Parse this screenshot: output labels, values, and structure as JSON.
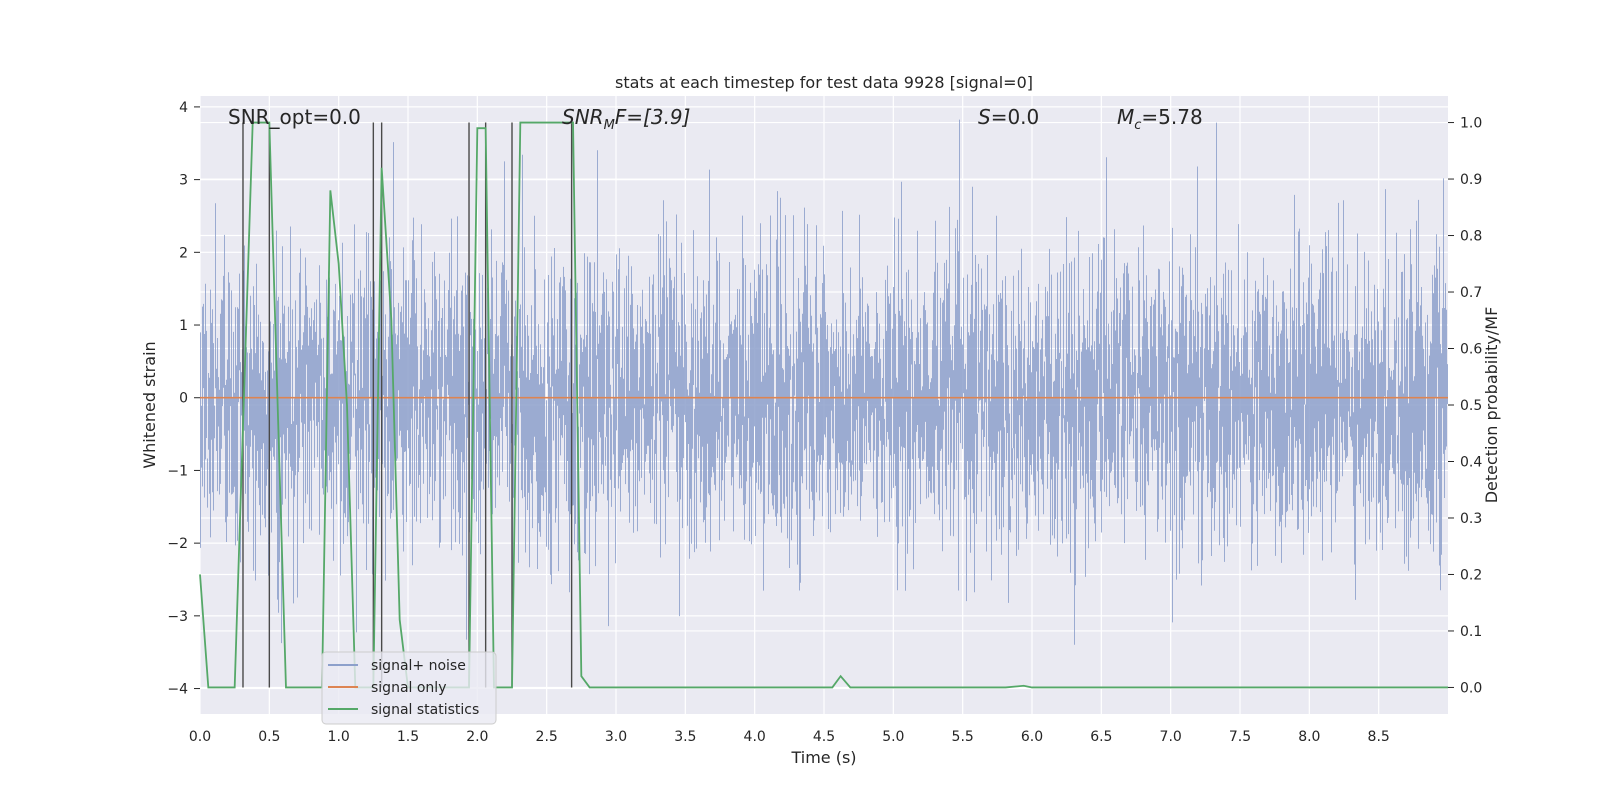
{
  "chart_data": {
    "type": "line",
    "title": "stats at each timestep for test data 9928 [signal=0]",
    "xlabel": "Time (s)",
    "ylabel_left": "Whitened strain",
    "ylabel_right": "Detection probability/MF",
    "xlim": [
      0.0,
      9.0
    ],
    "ylim_left": [
      -4.35,
      4.15
    ],
    "ylim_right": [
      -0.047,
      1.047
    ],
    "xticks": [
      0.0,
      0.5,
      1.0,
      1.5,
      2.0,
      2.5,
      3.0,
      3.5,
      4.0,
      4.5,
      5.0,
      5.5,
      6.0,
      6.5,
      7.0,
      7.5,
      8.0,
      8.5
    ],
    "xtick_labels": [
      "0.0",
      "0.5",
      "1.0",
      "1.5",
      "2.0",
      "2.5",
      "3.0",
      "3.5",
      "4.0",
      "4.5",
      "5.0",
      "5.5",
      "6.0",
      "6.5",
      "7.0",
      "7.5",
      "8.0",
      "8.5"
    ],
    "yticks_left": [
      -4,
      -3,
      -2,
      -1,
      0,
      1,
      2,
      3,
      4
    ],
    "ytick_labels_left": [
      "−4",
      "−3",
      "−2",
      "−1",
      "0",
      "1",
      "2",
      "3",
      "4"
    ],
    "yticks_right": [
      0.0,
      0.1,
      0.2,
      0.3,
      0.4,
      0.5,
      0.6,
      0.7,
      0.8,
      0.9,
      1.0
    ],
    "ytick_labels_right": [
      "0.0",
      "0.1",
      "0.2",
      "0.3",
      "0.4",
      "0.5",
      "0.6",
      "0.7",
      "0.8",
      "0.9",
      "1.0"
    ],
    "annotations": {
      "snr_opt": "SNR_opt=0.0",
      "snr_mf_base": "SNR",
      "snr_mf_sub": "M",
      "snr_mf_tail": "F=[3.9]",
      "s_var": "S",
      "s_val": "=0.0",
      "mc_base": "M",
      "mc_sub": "c",
      "mc_val": "=5.78"
    },
    "legend": {
      "position": "lower-left",
      "entries": [
        "signal+ noise",
        "signal only",
        "signal statistics"
      ]
    },
    "series": [
      {
        "name": "signal+ noise",
        "axis": "left",
        "description": "whitened noise, roughly N(0,1), 9 s sampled",
        "duration": 9.0,
        "std": 1.0,
        "color": "#8da0cb"
      },
      {
        "name": "signal only",
        "axis": "left",
        "x": [
          0.0,
          9.0
        ],
        "y": [
          0.0,
          0.0
        ],
        "color": "#dd8452"
      },
      {
        "name": "signal statistics",
        "axis": "right",
        "color": "#55a868",
        "x": [
          0.0,
          0.06,
          0.25,
          0.38,
          0.5,
          0.62,
          0.75,
          0.88,
          0.94,
          1.0,
          1.06,
          1.12,
          1.25,
          1.31,
          1.38,
          1.44,
          1.5,
          1.56,
          1.62,
          1.69,
          1.75,
          1.81,
          1.88,
          1.94,
          2.0,
          2.06,
          2.12,
          2.25,
          2.31,
          2.5,
          2.69,
          2.75,
          2.81,
          3.0,
          4.56,
          4.62,
          4.69,
          5.81,
          5.94,
          6.0,
          9.0
        ],
        "y": [
          0.2,
          0.0,
          0.0,
          1.0,
          1.0,
          0.0,
          0.0,
          0.0,
          0.88,
          0.75,
          0.5,
          0.0,
          0.0,
          0.92,
          0.65,
          0.12,
          0.0,
          0.0,
          0.0,
          0.0,
          0.0,
          0.0,
          0.0,
          0.0,
          0.99,
          0.99,
          0.0,
          0.0,
          1.0,
          1.0,
          1.0,
          0.02,
          0.0,
          0.0,
          0.0,
          0.02,
          0.0,
          0.0,
          0.003,
          0.0,
          0.0
        ]
      }
    ],
    "vertical_markers": [
      0.31,
      0.5,
      1.25,
      1.31,
      1.94,
      2.06,
      2.25,
      2.68
    ]
  }
}
